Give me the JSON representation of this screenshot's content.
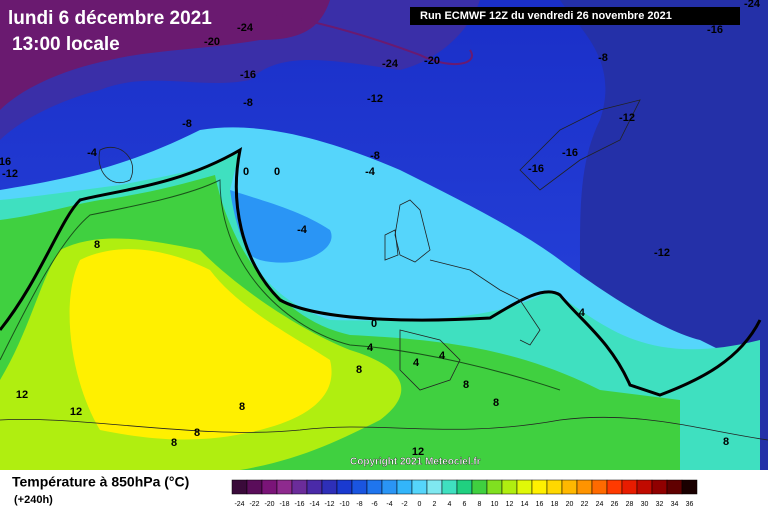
{
  "header": {
    "date": "lundi 6 décembre 2021",
    "time": "13:00 locale",
    "run": "Run ECMWF 12Z du vendredi 26 novembre 2021"
  },
  "map": {
    "contour_labels": [
      -24,
      -20,
      -24,
      -20,
      -16,
      -8,
      -12,
      -8,
      -4,
      16,
      -12,
      0,
      0,
      -8,
      -4,
      -4,
      8,
      -8,
      -16,
      -12,
      -16,
      -16,
      -12,
      -4,
      0,
      4,
      8,
      4,
      4,
      8,
      12,
      12,
      8,
      8,
      8,
      8,
      12,
      8,
      -24
    ]
  },
  "legend": {
    "title": "Température à 850hPa (°C)",
    "subtitle": "(+240h)",
    "copyright": "Copyright 2021 Meteociel.fr",
    "ticks": [
      -24,
      -22,
      -20,
      -18,
      -16,
      -14,
      -12,
      -10,
      -8,
      -6,
      -4,
      -2,
      0,
      2,
      4,
      6,
      8,
      10,
      12,
      14,
      16,
      18,
      20,
      22,
      24,
      26,
      28,
      30,
      32,
      34,
      36
    ],
    "colors": [
      "#3a0a3a",
      "#5a0d5a",
      "#7a1478",
      "#8e2a8e",
      "#6b2c9a",
      "#4a2aa8",
      "#2e2fb8",
      "#1a3ad0",
      "#1a55e0",
      "#1f75ee",
      "#2a95f5",
      "#33b5fa",
      "#55d5fb",
      "#7fe8f0",
      "#3fe0c0",
      "#20d080",
      "#40d040",
      "#80e020",
      "#b0ee10",
      "#e0f808",
      "#fff000",
      "#ffd800",
      "#ffb800",
      "#ff9400",
      "#ff6a00",
      "#ff3a00",
      "#e81c00",
      "#c00a00",
      "#900000",
      "#600000",
      "#1a0000"
    ]
  }
}
